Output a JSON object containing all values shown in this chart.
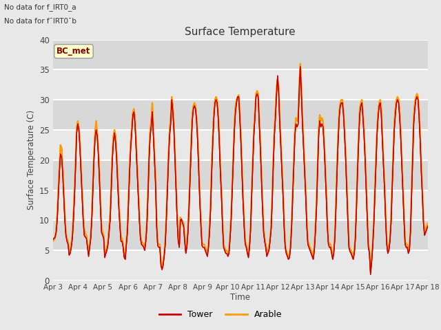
{
  "title": "Surface Temperature",
  "ylabel": "Surface Temperature (C)",
  "xlabel": "Time",
  "annotation_lines": [
    "No data for f_IRT0_a",
    "No data for f¯IRT0¯b"
  ],
  "legend_label_box": "BC_met",
  "legend_entries": [
    "Tower",
    "Arable"
  ],
  "legend_colors": [
    "#cc0000",
    "#ff9900"
  ],
  "ylim": [
    0,
    40
  ],
  "yticks": [
    0,
    5,
    10,
    15,
    20,
    25,
    30,
    35,
    40
  ],
  "bg_color": "#e8e8e8",
  "plot_bg_color": "#ebebeb",
  "x_tick_labels": [
    "Apr 3",
    "Apr 4",
    "Apr 5",
    "Apr 6",
    "Apr 7",
    "Apr 8",
    "Apr 9",
    "Apr 10",
    "Apr 11",
    "Apr 12",
    "Apr 13",
    "Apr 14",
    "Apr 15",
    "Apr 16",
    "Apr 17",
    "Apr 18"
  ],
  "tower_data": [
    6.8,
    7.0,
    7.2,
    8.0,
    10.0,
    14.0,
    18.0,
    21.0,
    20.5,
    18.0,
    14.0,
    10.0,
    7.5,
    6.5,
    6.0,
    4.2,
    4.5,
    5.5,
    7.0,
    10.0,
    14.0,
    19.0,
    24.5,
    26.0,
    25.0,
    22.0,
    18.0,
    14.0,
    10.0,
    7.5,
    7.2,
    7.0,
    5.5,
    4.0,
    5.5,
    7.0,
    10.0,
    15.0,
    20.0,
    23.5,
    25.0,
    24.0,
    21.0,
    17.0,
    12.0,
    8.0,
    7.5,
    7.0,
    3.8,
    4.5,
    5.0,
    6.0,
    8.0,
    10.0,
    15.0,
    20.0,
    23.0,
    24.5,
    23.0,
    20.0,
    16.0,
    12.0,
    9.0,
    6.5,
    6.5,
    5.5,
    3.8,
    3.5,
    6.0,
    8.0,
    13.0,
    18.0,
    22.0,
    24.5,
    27.5,
    28.0,
    26.0,
    22.0,
    18.0,
    14.0,
    10.0,
    7.0,
    6.0,
    5.8,
    5.5,
    5.0,
    6.5,
    9.0,
    14.0,
    20.0,
    24.0,
    25.5,
    28.0,
    24.0,
    20.0,
    16.0,
    9.0,
    5.8,
    5.5,
    5.5,
    2.5,
    1.8,
    2.5,
    4.0,
    6.0,
    10.0,
    15.0,
    20.0,
    24.0,
    26.0,
    30.0,
    28.0,
    25.0,
    20.0,
    15.0,
    10.0,
    6.5,
    5.5,
    10.0,
    10.2,
    9.5,
    9.0,
    6.5,
    4.5,
    5.5,
    8.0,
    12.0,
    17.0,
    22.0,
    26.5,
    28.5,
    29.0,
    28.5,
    26.5,
    23.0,
    18.0,
    13.0,
    9.0,
    5.8,
    5.5,
    5.5,
    5.0,
    4.5,
    4.0,
    5.5,
    8.0,
    12.0,
    18.0,
    23.0,
    27.0,
    29.5,
    30.0,
    29.5,
    27.0,
    23.0,
    18.0,
    14.0,
    9.0,
    5.5,
    5.0,
    4.5,
    4.5,
    4.0,
    4.5,
    7.0,
    10.0,
    15.0,
    20.0,
    25.0,
    28.0,
    29.5,
    30.5,
    30.5,
    27.0,
    23.0,
    18.0,
    13.0,
    9.0,
    6.0,
    5.5,
    4.5,
    3.8,
    5.5,
    8.5,
    14.0,
    19.0,
    24.0,
    27.0,
    30.5,
    31.0,
    30.5,
    26.0,
    22.0,
    17.0,
    12.0,
    8.0,
    6.5,
    5.5,
    4.0,
    4.5,
    5.0,
    6.5,
    8.5,
    13.0,
    19.0,
    24.0,
    27.0,
    31.0,
    34.0,
    31.0,
    26.0,
    22.0,
    18.0,
    14.0,
    9.0,
    5.5,
    4.5,
    4.0,
    3.5,
    3.8,
    5.5,
    9.0,
    14.0,
    19.0,
    24.0,
    26.0,
    25.5,
    26.0,
    31.5,
    35.5,
    31.0,
    26.0,
    22.0,
    18.0,
    14.0,
    9.0,
    6.0,
    5.5,
    5.0,
    4.5,
    4.0,
    3.5,
    5.0,
    8.0,
    12.0,
    18.0,
    24.0,
    26.5,
    25.5,
    26.0,
    25.5,
    22.5,
    18.5,
    14.0,
    9.0,
    6.0,
    5.5,
    5.5,
    4.5,
    3.5,
    4.5,
    7.0,
    12.0,
    18.0,
    23.0,
    27.0,
    29.0,
    29.5,
    29.5,
    27.5,
    24.0,
    20.0,
    15.0,
    10.0,
    5.5,
    4.8,
    4.5,
    4.0,
    3.5,
    4.5,
    7.0,
    12.0,
    18.0,
    23.0,
    27.5,
    29.0,
    29.5,
    27.0,
    24.0,
    20.0,
    15.0,
    10.0,
    5.5,
    4.5,
    1.0,
    3.0,
    5.5,
    9.0,
    14.0,
    19.0,
    24.0,
    27.0,
    29.0,
    29.5,
    27.5,
    23.0,
    19.0,
    15.0,
    10.0,
    6.0,
    4.5,
    5.0,
    6.5,
    9.5,
    15.0,
    20.0,
    25.0,
    27.5,
    29.5,
    30.0,
    29.5,
    27.0,
    23.5,
    19.0,
    14.5,
    10.0,
    6.0,
    5.5,
    5.5,
    4.5,
    5.0,
    8.0,
    14.0,
    20.0,
    26.0,
    28.5,
    30.0,
    30.5,
    30.0,
    27.0,
    23.0,
    18.0,
    14.0,
    9.5,
    7.5,
    8.0,
    8.5,
    9.0
  ],
  "arable_data": [
    6.5,
    6.8,
    7.0,
    8.5,
    11.0,
    15.0,
    19.0,
    22.5,
    22.0,
    19.0,
    15.0,
    11.0,
    8.0,
    7.0,
    6.5,
    5.0,
    5.0,
    6.0,
    7.5,
    11.0,
    15.0,
    20.0,
    25.5,
    26.5,
    25.5,
    23.0,
    19.0,
    15.0,
    11.0,
    8.5,
    7.8,
    7.5,
    6.0,
    4.5,
    5.5,
    7.5,
    11.0,
    16.0,
    21.0,
    24.5,
    26.5,
    24.5,
    22.0,
    18.0,
    13.0,
    9.0,
    8.0,
    7.5,
    4.2,
    5.0,
    5.5,
    6.5,
    9.0,
    11.0,
    16.0,
    21.0,
    24.0,
    25.0,
    24.0,
    21.0,
    17.0,
    13.0,
    10.0,
    7.0,
    7.0,
    6.0,
    4.0,
    4.0,
    6.5,
    9.0,
    14.0,
    19.0,
    23.0,
    25.5,
    28.0,
    28.5,
    27.0,
    23.0,
    19.0,
    15.0,
    11.0,
    7.5,
    6.5,
    6.2,
    6.0,
    5.5,
    7.0,
    10.0,
    15.0,
    21.0,
    25.0,
    26.5,
    29.5,
    25.0,
    21.0,
    17.0,
    10.0,
    6.2,
    6.0,
    6.0,
    3.0,
    2.0,
    3.0,
    4.5,
    6.5,
    11.0,
    16.0,
    21.0,
    25.0,
    27.0,
    30.5,
    29.0,
    26.0,
    21.0,
    16.0,
    11.0,
    7.0,
    6.0,
    10.5,
    10.0,
    9.8,
    9.5,
    7.0,
    5.0,
    6.0,
    8.5,
    13.0,
    18.0,
    23.0,
    27.5,
    29.0,
    29.5,
    29.0,
    27.0,
    24.0,
    19.0,
    14.0,
    10.0,
    6.2,
    6.0,
    6.0,
    5.5,
    5.0,
    4.5,
    6.0,
    9.0,
    13.0,
    19.0,
    24.0,
    28.0,
    30.0,
    30.5,
    30.0,
    28.0,
    24.0,
    19.0,
    15.0,
    10.0,
    6.0,
    5.5,
    5.0,
    5.0,
    4.5,
    5.0,
    7.5,
    11.0,
    16.0,
    21.0,
    26.0,
    29.0,
    30.0,
    30.5,
    30.8,
    28.0,
    24.0,
    19.0,
    14.0,
    10.0,
    6.5,
    6.0,
    5.0,
    4.2,
    6.0,
    9.0,
    15.0,
    20.0,
    25.0,
    28.0,
    31.0,
    31.5,
    31.0,
    27.0,
    23.0,
    18.0,
    13.0,
    9.0,
    7.0,
    6.0,
    4.5,
    5.0,
    5.5,
    7.0,
    9.0,
    14.0,
    20.0,
    25.0,
    28.0,
    32.0,
    33.5,
    32.0,
    27.0,
    23.0,
    19.0,
    15.0,
    10.0,
    6.0,
    5.0,
    4.5,
    4.0,
    4.2,
    6.0,
    9.5,
    15.0,
    20.0,
    25.0,
    27.0,
    26.5,
    27.0,
    32.5,
    36.0,
    32.0,
    27.0,
    23.0,
    19.0,
    15.0,
    10.0,
    6.5,
    6.0,
    5.5,
    5.0,
    4.5,
    4.0,
    5.5,
    9.0,
    13.0,
    19.0,
    25.0,
    27.5,
    26.5,
    27.0,
    26.5,
    23.5,
    19.5,
    15.0,
    10.0,
    6.5,
    6.0,
    6.0,
    5.0,
    4.0,
    5.0,
    7.5,
    13.0,
    19.0,
    24.0,
    28.0,
    29.5,
    30.0,
    30.0,
    28.0,
    25.0,
    21.0,
    16.0,
    11.0,
    6.0,
    5.2,
    5.0,
    4.5,
    4.0,
    5.0,
    7.5,
    13.0,
    19.0,
    24.0,
    28.5,
    29.5,
    30.0,
    28.0,
    25.0,
    21.0,
    16.0,
    11.0,
    6.0,
    5.0,
    1.5,
    3.5,
    6.0,
    9.5,
    15.0,
    20.0,
    25.0,
    28.0,
    29.5,
    30.0,
    28.5,
    24.0,
    20.0,
    16.0,
    11.0,
    6.5,
    5.0,
    5.5,
    7.0,
    10.0,
    16.0,
    21.0,
    26.0,
    28.5,
    30.0,
    30.5,
    30.0,
    28.0,
    24.5,
    20.0,
    15.5,
    11.0,
    6.5,
    6.0,
    6.0,
    5.0,
    5.5,
    8.5,
    15.0,
    21.0,
    27.0,
    29.5,
    30.5,
    31.0,
    30.5,
    28.0,
    24.0,
    19.0,
    15.0,
    10.5,
    8.0,
    8.5,
    9.0,
    9.5
  ]
}
